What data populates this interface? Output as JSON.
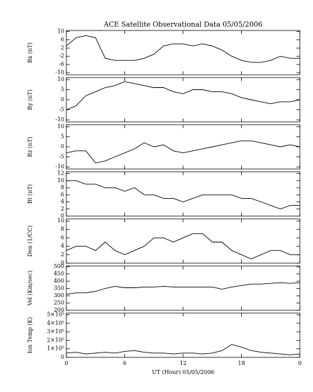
{
  "chart_data": [
    {
      "type": "line",
      "title": "ACE Satellite Observational Data   05/05/2006",
      "ylabel": "Bx (nT)",
      "ylim": [
        -11,
        10.5
      ],
      "yticks": [
        -10,
        -6,
        -2,
        2,
        6,
        10
      ],
      "x": [
        0,
        1,
        2,
        3,
        4,
        5,
        6,
        7,
        8,
        9,
        10,
        11,
        12,
        13,
        14,
        15,
        16,
        17,
        18,
        19,
        20,
        21,
        22,
        23,
        24
      ],
      "values": [
        3,
        7,
        8,
        7,
        -3,
        -4,
        -4,
        -4,
        -3,
        -1,
        3,
        4,
        4,
        3,
        4,
        3,
        1,
        -2,
        -4,
        -5,
        -5,
        -4,
        -2,
        -3,
        -3
      ],
      "color": "#000000"
    },
    {
      "type": "line",
      "ylabel": "By (nT)",
      "ylim": [
        -11,
        11
      ],
      "yticks": [
        -10,
        -5,
        0,
        5,
        10
      ],
      "x": [
        0,
        1,
        2,
        3,
        4,
        5,
        6,
        7,
        8,
        9,
        10,
        11,
        12,
        13,
        14,
        15,
        16,
        17,
        18,
        19,
        20,
        21,
        22,
        23,
        24
      ],
      "values": [
        -5,
        -3,
        2,
        4,
        6,
        7,
        9,
        8,
        7,
        6,
        6,
        4,
        3,
        5,
        5,
        4,
        4,
        3,
        1,
        0,
        -1,
        -2,
        -1,
        -1,
        0
      ],
      "color": "#000000"
    },
    {
      "type": "line",
      "ylabel": "Bz (nT)",
      "ylim": [
        -11,
        11
      ],
      "yticks": [
        -10,
        -5,
        0,
        5,
        10
      ],
      "x": [
        0,
        1,
        2,
        3,
        4,
        5,
        6,
        7,
        8,
        9,
        10,
        11,
        12,
        13,
        14,
        15,
        16,
        17,
        18,
        19,
        20,
        21,
        22,
        23,
        24
      ],
      "values": [
        -3,
        -2,
        -2,
        -8,
        -7,
        -5,
        -3,
        -1,
        2,
        0,
        1,
        -2,
        -3,
        -2,
        -1,
        0,
        1,
        2,
        3,
        3,
        2,
        1,
        0,
        1,
        0
      ],
      "color": "#000000"
    },
    {
      "type": "line",
      "ylabel": "Bt (nT)",
      "ylim": [
        0,
        12.5
      ],
      "yticks": [
        0,
        2,
        4,
        6,
        8,
        10,
        12
      ],
      "x": [
        0,
        1,
        2,
        3,
        4,
        5,
        6,
        7,
        8,
        9,
        10,
        11,
        12,
        13,
        14,
        15,
        16,
        17,
        18,
        19,
        20,
        21,
        22,
        23,
        24
      ],
      "values": [
        10,
        10,
        9,
        9,
        8,
        8,
        7,
        8,
        6,
        6,
        5,
        5,
        4,
        5,
        6,
        6,
        6,
        6,
        5,
        5,
        4,
        3,
        2,
        3,
        3
      ],
      "color": "#000000"
    },
    {
      "type": "line",
      "ylabel": "Den (1/CC)",
      "ylim": [
        0,
        10.5
      ],
      "yticks": [
        0,
        2,
        4,
        6,
        8,
        10
      ],
      "x": [
        0,
        1,
        2,
        3,
        4,
        5,
        6,
        7,
        8,
        9,
        10,
        11,
        12,
        13,
        14,
        15,
        16,
        17,
        18,
        19,
        20,
        21,
        22,
        23,
        24
      ],
      "values": [
        3,
        4,
        4,
        3,
        5,
        3,
        2,
        3,
        4,
        6,
        6,
        5,
        6,
        7,
        7,
        5,
        5,
        3,
        2,
        1,
        2,
        3,
        3,
        2,
        2
      ],
      "color": "#000000"
    },
    {
      "type": "line",
      "ylabel": "Vel (Km/sec)",
      "ylim": [
        200,
        505
      ],
      "yticks": [
        200,
        250,
        300,
        350,
        400,
        450,
        500
      ],
      "x": [
        0,
        1,
        2,
        3,
        4,
        5,
        6,
        7,
        8,
        9,
        10,
        11,
        12,
        13,
        14,
        15,
        16,
        17,
        18,
        19,
        20,
        21,
        22,
        23,
        24
      ],
      "values": [
        310,
        320,
        320,
        330,
        350,
        365,
        355,
        355,
        360,
        360,
        365,
        360,
        360,
        360,
        360,
        360,
        345,
        360,
        370,
        380,
        380,
        385,
        390,
        385,
        390
      ],
      "color": "#000000"
    },
    {
      "type": "line",
      "ylabel": "Ion Temp (K)",
      "ylim": [
        0,
        520000
      ],
      "yticks": [
        0,
        {
          "value": 100000,
          "label": "1×10⁵"
        },
        {
          "value": 200000,
          "label": "2×10⁵"
        },
        {
          "value": 300000,
          "label": "3×10⁵"
        },
        {
          "value": 400000,
          "label": "4×10⁵"
        },
        {
          "value": 500000,
          "label": "5×10⁵"
        }
      ],
      "x": [
        0,
        1,
        2,
        3,
        4,
        5,
        6,
        7,
        8,
        9,
        10,
        11,
        12,
        13,
        14,
        15,
        16,
        17,
        18,
        19,
        20,
        21,
        22,
        23,
        24
      ],
      "values": [
        50000,
        60000,
        40000,
        50000,
        60000,
        50000,
        70000,
        80000,
        60000,
        50000,
        50000,
        40000,
        50000,
        50000,
        40000,
        50000,
        80000,
        150000,
        120000,
        80000,
        60000,
        50000,
        40000,
        30000,
        40000
      ],
      "color": "#000000",
      "xlabel": "UT (Hour)  05/05/2006",
      "xlim": [
        0,
        24
      ],
      "xticks": [
        0,
        6,
        12,
        18,
        {
          "value": 24,
          "label": "0"
        }
      ]
    }
  ]
}
